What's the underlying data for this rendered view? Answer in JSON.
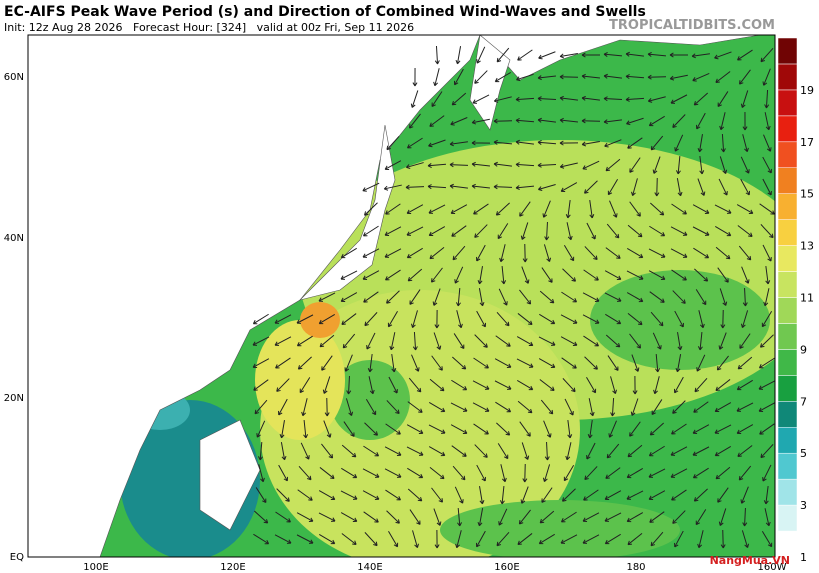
{
  "header": {
    "title": "EC-AIFS Peak Wave Period (s) and Direction of Combined Wind-Waves and Swells",
    "subtitle": "Init: 12z Aug 28 2026   Forecast Hour: [324]   valid at 00z Fri, Sep 11 2026",
    "site": "TROPICALTIDBITS.COM"
  },
  "map": {
    "lat_labels": [
      "60N",
      "40N",
      "20N",
      "EQ"
    ],
    "lon_labels": [
      "100E",
      "120E",
      "140E",
      "160E",
      "180",
      "160W"
    ]
  },
  "colorbar": {
    "labels": [
      "19",
      "17",
      "15",
      "13",
      "11",
      "9",
      "7",
      "5",
      "3",
      "1"
    ]
  },
  "watermark": "NangMua.VN"
}
